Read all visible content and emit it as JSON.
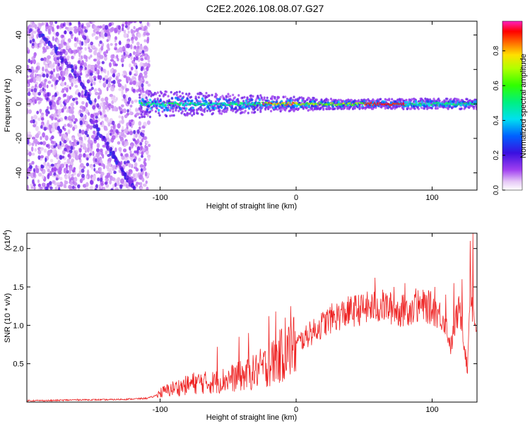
{
  "figure_title": "C2E2.2026.108.08.07.G27",
  "colors": {
    "snr_line": "#ee2222",
    "axis": "#000000",
    "background": "#ffffff"
  },
  "chart_data": [
    {
      "type": "heatmap",
      "title": "C2E2.2026.108.08.07.G27",
      "xlabel": "Height of straight line (km)",
      "ylabel": "Frequency (Hz)",
      "xlim": [
        -198,
        133
      ],
      "ylim": [
        -50,
        48
      ],
      "x_ticks": [
        -100,
        0,
        100
      ],
      "x_tick_labels": [
        "-100",
        "0",
        "100"
      ],
      "y_ticks": [
        -40,
        -20,
        0,
        20,
        40
      ],
      "y_tick_labels": [
        "-40",
        "-20",
        "0",
        "20",
        "40"
      ],
      "colorbar": {
        "label": "Normalized spectral amplitude",
        "range": [
          0,
          0.97
        ],
        "ticks": [
          0.0,
          0.2,
          0.4,
          0.6,
          0.8
        ],
        "tick_labels": [
          "0.0",
          "0.2",
          "0.4",
          "0.6",
          "0.8"
        ],
        "colormap": "rainbow (white-violet-blue-cyan-green-yellow-red-magenta)"
      },
      "features": [
        {
          "name": "noise scatter region",
          "x_range": [
            -198,
            -108
          ],
          "y_range": [
            -50,
            48
          ],
          "amplitude": "0.0-0.15"
        },
        {
          "name": "descending streak upper",
          "points": [
            [
              -190,
              42
            ],
            [
              -175,
              30
            ],
            [
              -160,
              15
            ],
            [
              -150,
              0
            ]
          ],
          "amplitude": "0.1-0.2"
        },
        {
          "name": "descending streak lower",
          "points": [
            [
              -150,
              -10
            ],
            [
              -138,
              -25
            ],
            [
              -127,
              -40
            ],
            [
              -118,
              -50
            ]
          ],
          "amplitude": "0.1-0.3"
        },
        {
          "name": "signal band",
          "x_range": [
            -115,
            133
          ],
          "center_freq": 0,
          "half_width_start": 8,
          "half_width_end": 3,
          "amplitude": "0.3-0.9"
        }
      ]
    },
    {
      "type": "line",
      "xlabel": "Height of straight line (km)",
      "ylabel": "SNR (10 * v/v)",
      "y_multiplier": "(x10^4)",
      "y_multiplier_base": "(x10",
      "y_multiplier_exp": "4",
      "y_multiplier_close": ")",
      "xlim": [
        -198,
        133
      ],
      "ylim": [
        0,
        2.2
      ],
      "x_ticks": [
        -100,
        0,
        100
      ],
      "x_tick_labels": [
        "-100",
        "0",
        "100"
      ],
      "y_ticks": [
        0.5,
        1.0,
        1.5,
        2.0
      ],
      "y_tick_labels": [
        "0.5",
        "1.0",
        "1.5",
        "2.0"
      ],
      "series": [
        {
          "name": "SNR",
          "color": "#ee2222",
          "x": [
            -198,
            -180,
            -160,
            -140,
            -120,
            -110,
            -105,
            -100,
            -95,
            -90,
            -85,
            -80,
            -75,
            -70,
            -65,
            -60,
            -55,
            -50,
            -45,
            -40,
            -35,
            -30,
            -25,
            -20,
            -15,
            -10,
            -5,
            0,
            5,
            10,
            15,
            20,
            25,
            30,
            35,
            40,
            45,
            50,
            55,
            60,
            65,
            70,
            75,
            80,
            85,
            90,
            95,
            100,
            105,
            110,
            112,
            114,
            116,
            118,
            120,
            122,
            124,
            126,
            128,
            130,
            132
          ],
          "y": [
            0.02,
            0.02,
            0.03,
            0.03,
            0.04,
            0.05,
            0.07,
            0.12,
            0.15,
            0.18,
            0.2,
            0.22,
            0.25,
            0.26,
            0.25,
            0.26,
            0.28,
            0.3,
            0.32,
            0.34,
            0.36,
            0.4,
            0.45,
            0.48,
            0.55,
            0.62,
            0.68,
            0.75,
            0.82,
            0.88,
            0.95,
            1.02,
            1.08,
            1.12,
            1.15,
            1.18,
            1.2,
            1.22,
            1.23,
            1.24,
            1.25,
            1.22,
            1.18,
            1.2,
            1.22,
            1.24,
            1.25,
            1.22,
            1.15,
            1.05,
            0.85,
            0.72,
            0.95,
            1.1,
            1.2,
            1.05,
            0.7,
            0.4,
            1.6,
            1.15,
            1.0
          ],
          "spikes": [
            [
              -58,
              0.72
            ],
            [
              -42,
              0.85
            ],
            [
              -35,
              0.9
            ],
            [
              -20,
              1.12
            ],
            [
              -15,
              1.18
            ],
            [
              -8,
              1.1
            ],
            [
              -4,
              1.25
            ],
            [
              10,
              1.05
            ],
            [
              48,
              1.4
            ],
            [
              58,
              1.62
            ],
            [
              72,
              1.5
            ],
            [
              80,
              1.55
            ],
            [
              88,
              1.48
            ],
            [
              102,
              1.5
            ],
            [
              110,
              1.4
            ],
            [
              116,
              1.55
            ],
            [
              122,
              1.6
            ],
            [
              128,
              2.1
            ],
            [
              130,
              2.2
            ]
          ]
        }
      ]
    }
  ]
}
